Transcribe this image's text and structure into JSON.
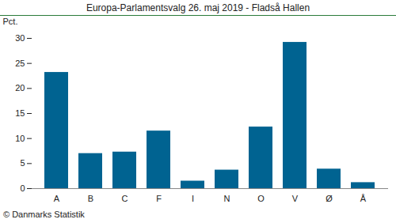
{
  "chart_data": {
    "type": "bar",
    "title": "Europa-Parlamentsvalg 26. maj 2019 - Fladså Hallen",
    "y_label": "Pct.",
    "caption": "© Danmarks Statistik",
    "categories": [
      "A",
      "B",
      "C",
      "F",
      "I",
      "N",
      "O",
      "V",
      "Ø",
      "Å"
    ],
    "values": [
      23.2,
      7.0,
      7.3,
      11.5,
      1.5,
      3.7,
      12.3,
      29.2,
      3.9,
      1.2
    ],
    "color": "#006391",
    "ylim": [
      0,
      30
    ],
    "yticks": [
      0,
      5,
      10,
      15,
      20,
      25,
      30
    ],
    "grid": false
  }
}
